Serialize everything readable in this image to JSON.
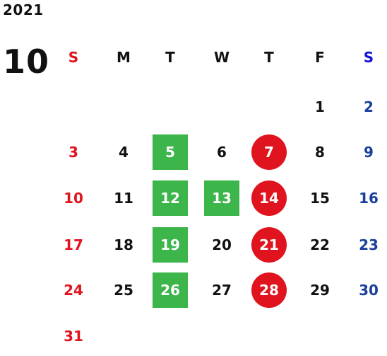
{
  "calendar": {
    "year": "2021",
    "month": "10",
    "weekdays": [
      "S",
      "M",
      "T",
      "W",
      "T",
      "F",
      "S"
    ],
    "weeks": [
      [
        "",
        "",
        "",
        "",
        "",
        "1",
        "2"
      ],
      [
        "3",
        "4",
        "5",
        "6",
        "7",
        "8",
        "9"
      ],
      [
        "10",
        "11",
        "12",
        "13",
        "14",
        "15",
        "16"
      ],
      [
        "17",
        "18",
        "19",
        "20",
        "21",
        "22",
        "23"
      ],
      [
        "24",
        "25",
        "26",
        "27",
        "28",
        "29",
        "30"
      ],
      [
        "31",
        "",
        "",
        "",
        "",
        "",
        ""
      ]
    ],
    "highlighted_green_days": [
      "5",
      "12",
      "13",
      "19",
      "26"
    ],
    "highlighted_red_circle_days": [
      "7",
      "14",
      "21",
      "28"
    ]
  },
  "colors": {
    "sunday": "#e0141e",
    "saturday": "#1a3f9c",
    "saturday_header": "#1414d6",
    "green_highlight": "#3cb54a",
    "red_highlight": "#e0141e",
    "text": "#111111"
  }
}
